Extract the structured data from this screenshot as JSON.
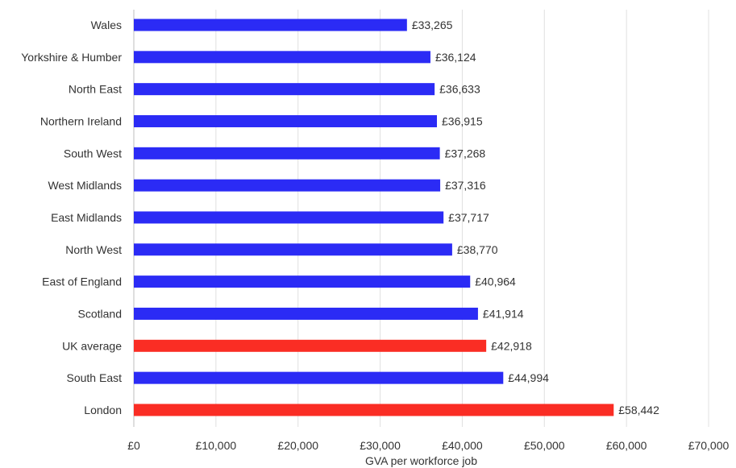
{
  "chart_data": {
    "type": "bar",
    "orientation": "horizontal",
    "categories": [
      "Wales",
      "Yorkshire & Humber",
      "North East",
      "Northern Ireland",
      "South West",
      "West Midlands",
      "East Midlands",
      "North West",
      "East of England",
      "Scotland",
      "UK average",
      "South East",
      "London"
    ],
    "values": [
      33265,
      36124,
      36633,
      36915,
      37268,
      37316,
      37717,
      38770,
      40964,
      41914,
      42918,
      44994,
      58442
    ],
    "value_labels": [
      "£33,265",
      "£36,124",
      "£36,633",
      "£36,915",
      "£37,268",
      "£37,316",
      "£37,717",
      "£38,770",
      "£40,964",
      "£41,914",
      "£42,918",
      "£44,994",
      "£58,442"
    ],
    "highlight": [
      false,
      false,
      false,
      false,
      false,
      false,
      false,
      false,
      false,
      false,
      true,
      false,
      true
    ],
    "xlabel": "GVA per workforce job",
    "xlim": [
      0,
      70000
    ],
    "xticks": [
      0,
      10000,
      20000,
      30000,
      40000,
      50000,
      60000,
      70000
    ],
    "xtick_labels": [
      "£0",
      "£10,000",
      "£20,000",
      "£30,000",
      "£40,000",
      "£50,000",
      "£60,000",
      "£70,000"
    ],
    "grid": true,
    "colors": {
      "default": "#2b2bf5",
      "highlight": "#fa2d24"
    }
  }
}
